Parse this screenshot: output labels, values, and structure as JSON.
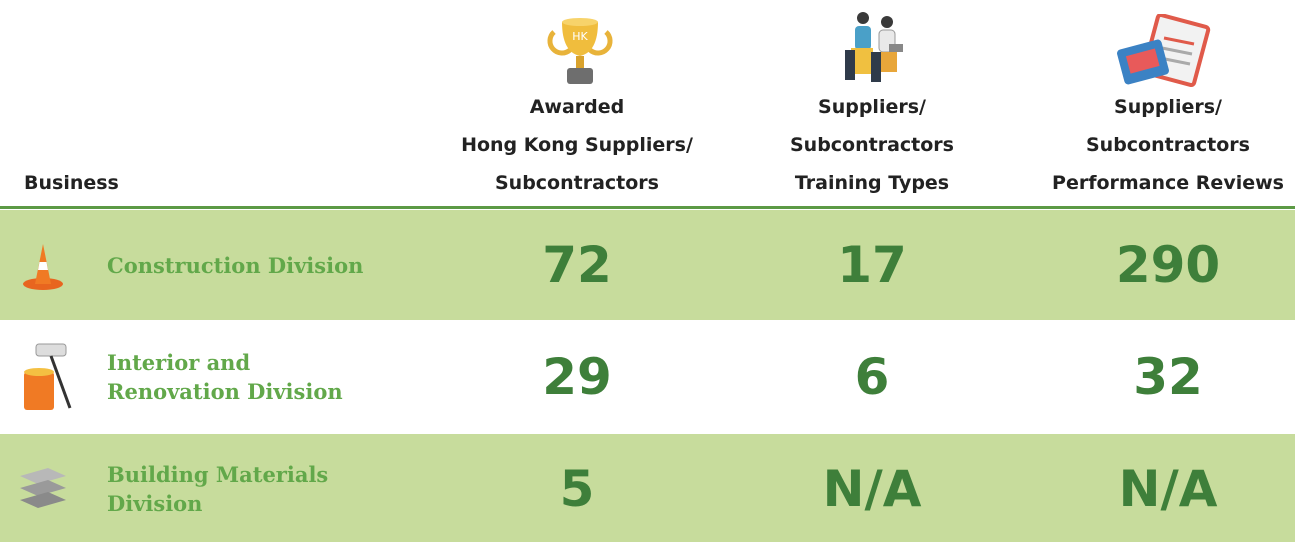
{
  "table": {
    "business_header": "Business",
    "trophy_label": "HK",
    "columns": [
      {
        "lines": [
          "Awarded",
          "Hong Kong Suppliers/",
          "Subcontractors"
        ]
      },
      {
        "lines": [
          "Suppliers/",
          "Subcontractors",
          "Training Types"
        ]
      },
      {
        "lines": [
          "Suppliers/",
          "Subcontractors",
          "Performance Reviews"
        ]
      }
    ],
    "rows": [
      {
        "division": [
          "Construction Division"
        ],
        "cells": [
          72,
          17,
          290
        ]
      },
      {
        "division": [
          "Interior and",
          "Renovation Division"
        ],
        "cells": [
          29,
          6,
          32
        ]
      },
      {
        "division": [
          "Building Materials",
          "Division"
        ],
        "cells": [
          5,
          "N/A",
          "N/A"
        ]
      }
    ]
  }
}
